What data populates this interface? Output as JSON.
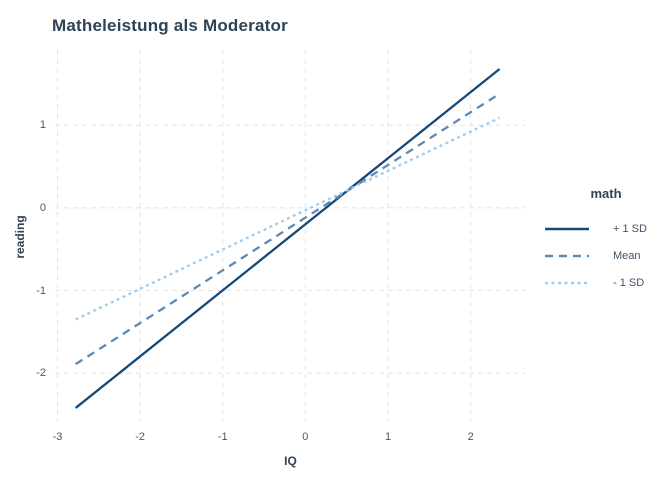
{
  "colors": {
    "background": "#ffffff",
    "grid": "#e4e4e4",
    "title_text": "#2d4356",
    "tick_text": "#44596e",
    "legend_text": "#3d5268"
  },
  "chart_data": {
    "type": "line",
    "title": "Matheleistung als Moderator",
    "xlabel": "IQ",
    "ylabel": "reading",
    "xlim": [
      -3.03,
      2.67
    ],
    "ylim": [
      -2.59,
      1.91
    ],
    "x_ticks": [
      -3,
      -2,
      -1,
      0,
      1,
      2
    ],
    "y_ticks": [
      -2,
      -1,
      0,
      1
    ],
    "grid": "dashed major gridlines, white panel background",
    "legend_title": "math",
    "legend_position": "right",
    "series": [
      {
        "name": "+ 1 SD",
        "linestyle": "solid",
        "color": "#14497a",
        "x": [
          -2.78,
          2.35
        ],
        "y": [
          -2.42,
          1.68
        ]
      },
      {
        "name": "Mean",
        "linestyle": "dashed",
        "color": "#5d89b4",
        "x": [
          -2.78,
          2.35
        ],
        "y": [
          -1.89,
          1.38
        ]
      },
      {
        "name": "- 1 SD",
        "linestyle": "dotted",
        "color": "#a2cbea",
        "x": [
          -2.78,
          2.35
        ],
        "y": [
          -1.35,
          1.09
        ]
      }
    ]
  }
}
